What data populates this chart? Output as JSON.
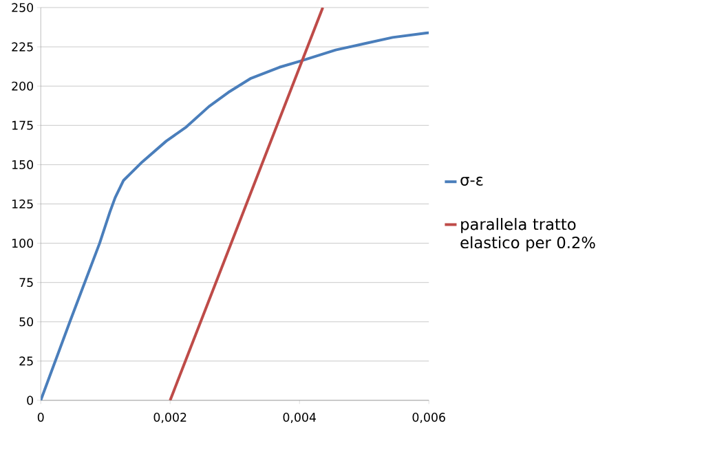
{
  "chart_data": {
    "type": "line",
    "xlim": [
      0,
      0.006
    ],
    "ylim": [
      0,
      250
    ],
    "xticks": [
      {
        "value": 0,
        "label": "0"
      },
      {
        "value": 0.002,
        "label": "0,002"
      },
      {
        "value": 0.004,
        "label": "0,004"
      },
      {
        "value": 0.006,
        "label": "0,006"
      }
    ],
    "yticks": [
      0,
      25,
      50,
      75,
      100,
      125,
      150,
      175,
      200,
      225,
      250
    ],
    "grid": "y",
    "legend": "right",
    "marker": "none",
    "series": [
      {
        "name": "σ-ε",
        "color": "#4a7ebb",
        "x": [
          0,
          0.00045,
          0.00091,
          0.00107,
          0.00115,
          0.00128,
          0.00155,
          0.00194,
          0.00225,
          0.0026,
          0.0029,
          0.00325,
          0.00369,
          0.00402,
          0.00456,
          0.005,
          0.00544,
          0.006
        ],
        "values": [
          0,
          50,
          100,
          120,
          129,
          140,
          151,
          165,
          174,
          187,
          196,
          205,
          212,
          216,
          223,
          227,
          231,
          234
        ]
      },
      {
        "name": "parallela tratto elastico per 0.2%",
        "color": "#be4b48",
        "x": [
          0.002,
          0.00436
        ],
        "values": [
          0,
          250
        ]
      }
    ]
  }
}
